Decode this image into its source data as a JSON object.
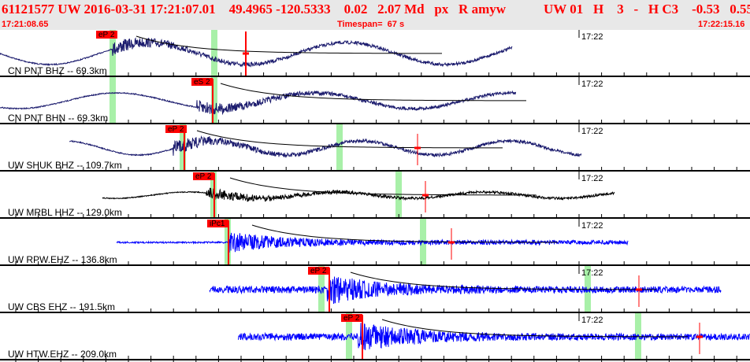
{
  "header": {
    "event_line_left": "61121577 UW 2016-03-31 17:21:07.01    49.4965 -120.5333    0.02   2.07 Md   px   R amyw",
    "event_line_right": "UW 01   H    3   -   H C3    -0.53   0.55",
    "start_time": "17:21:08.65",
    "timespan": "Timespan=  67 s",
    "end_time": "17:22:15.16"
  },
  "colors": {
    "pick": "#ff0000",
    "window": "#a8f0a8",
    "navy": "#1c1c6e",
    "black": "#000000",
    "blue": "#0000ff"
  },
  "time_mark": "17:22",
  "channels": [
    {
      "label": "CN PNT BHZ -- 69.3km",
      "color": "#1c1c6e",
      "pick": "eP 2"
    },
    {
      "label": "CN PNT BHN -- 69.3km",
      "color": "#1c1c6e",
      "pick": "eS 2"
    },
    {
      "label": "UW SHUK BHZ -- 109.7km",
      "color": "#1c1c6e",
      "pick": "eP 2"
    },
    {
      "label": "UW MRBL HHZ -- 129.0km",
      "color": "#000000",
      "pick": "eP 2"
    },
    {
      "label": "UW RPW.EHZ -- 136.8km",
      "color": "#0000ff",
      "pick": "iPc1"
    },
    {
      "label": "UW CBS EHZ -- 191.5km",
      "color": "#0000ff",
      "pick": "eP 2"
    },
    {
      "label": "UW HTW.EHZ -- 209.0km",
      "color": "#0000ff",
      "pick": "eP 2"
    }
  ]
}
